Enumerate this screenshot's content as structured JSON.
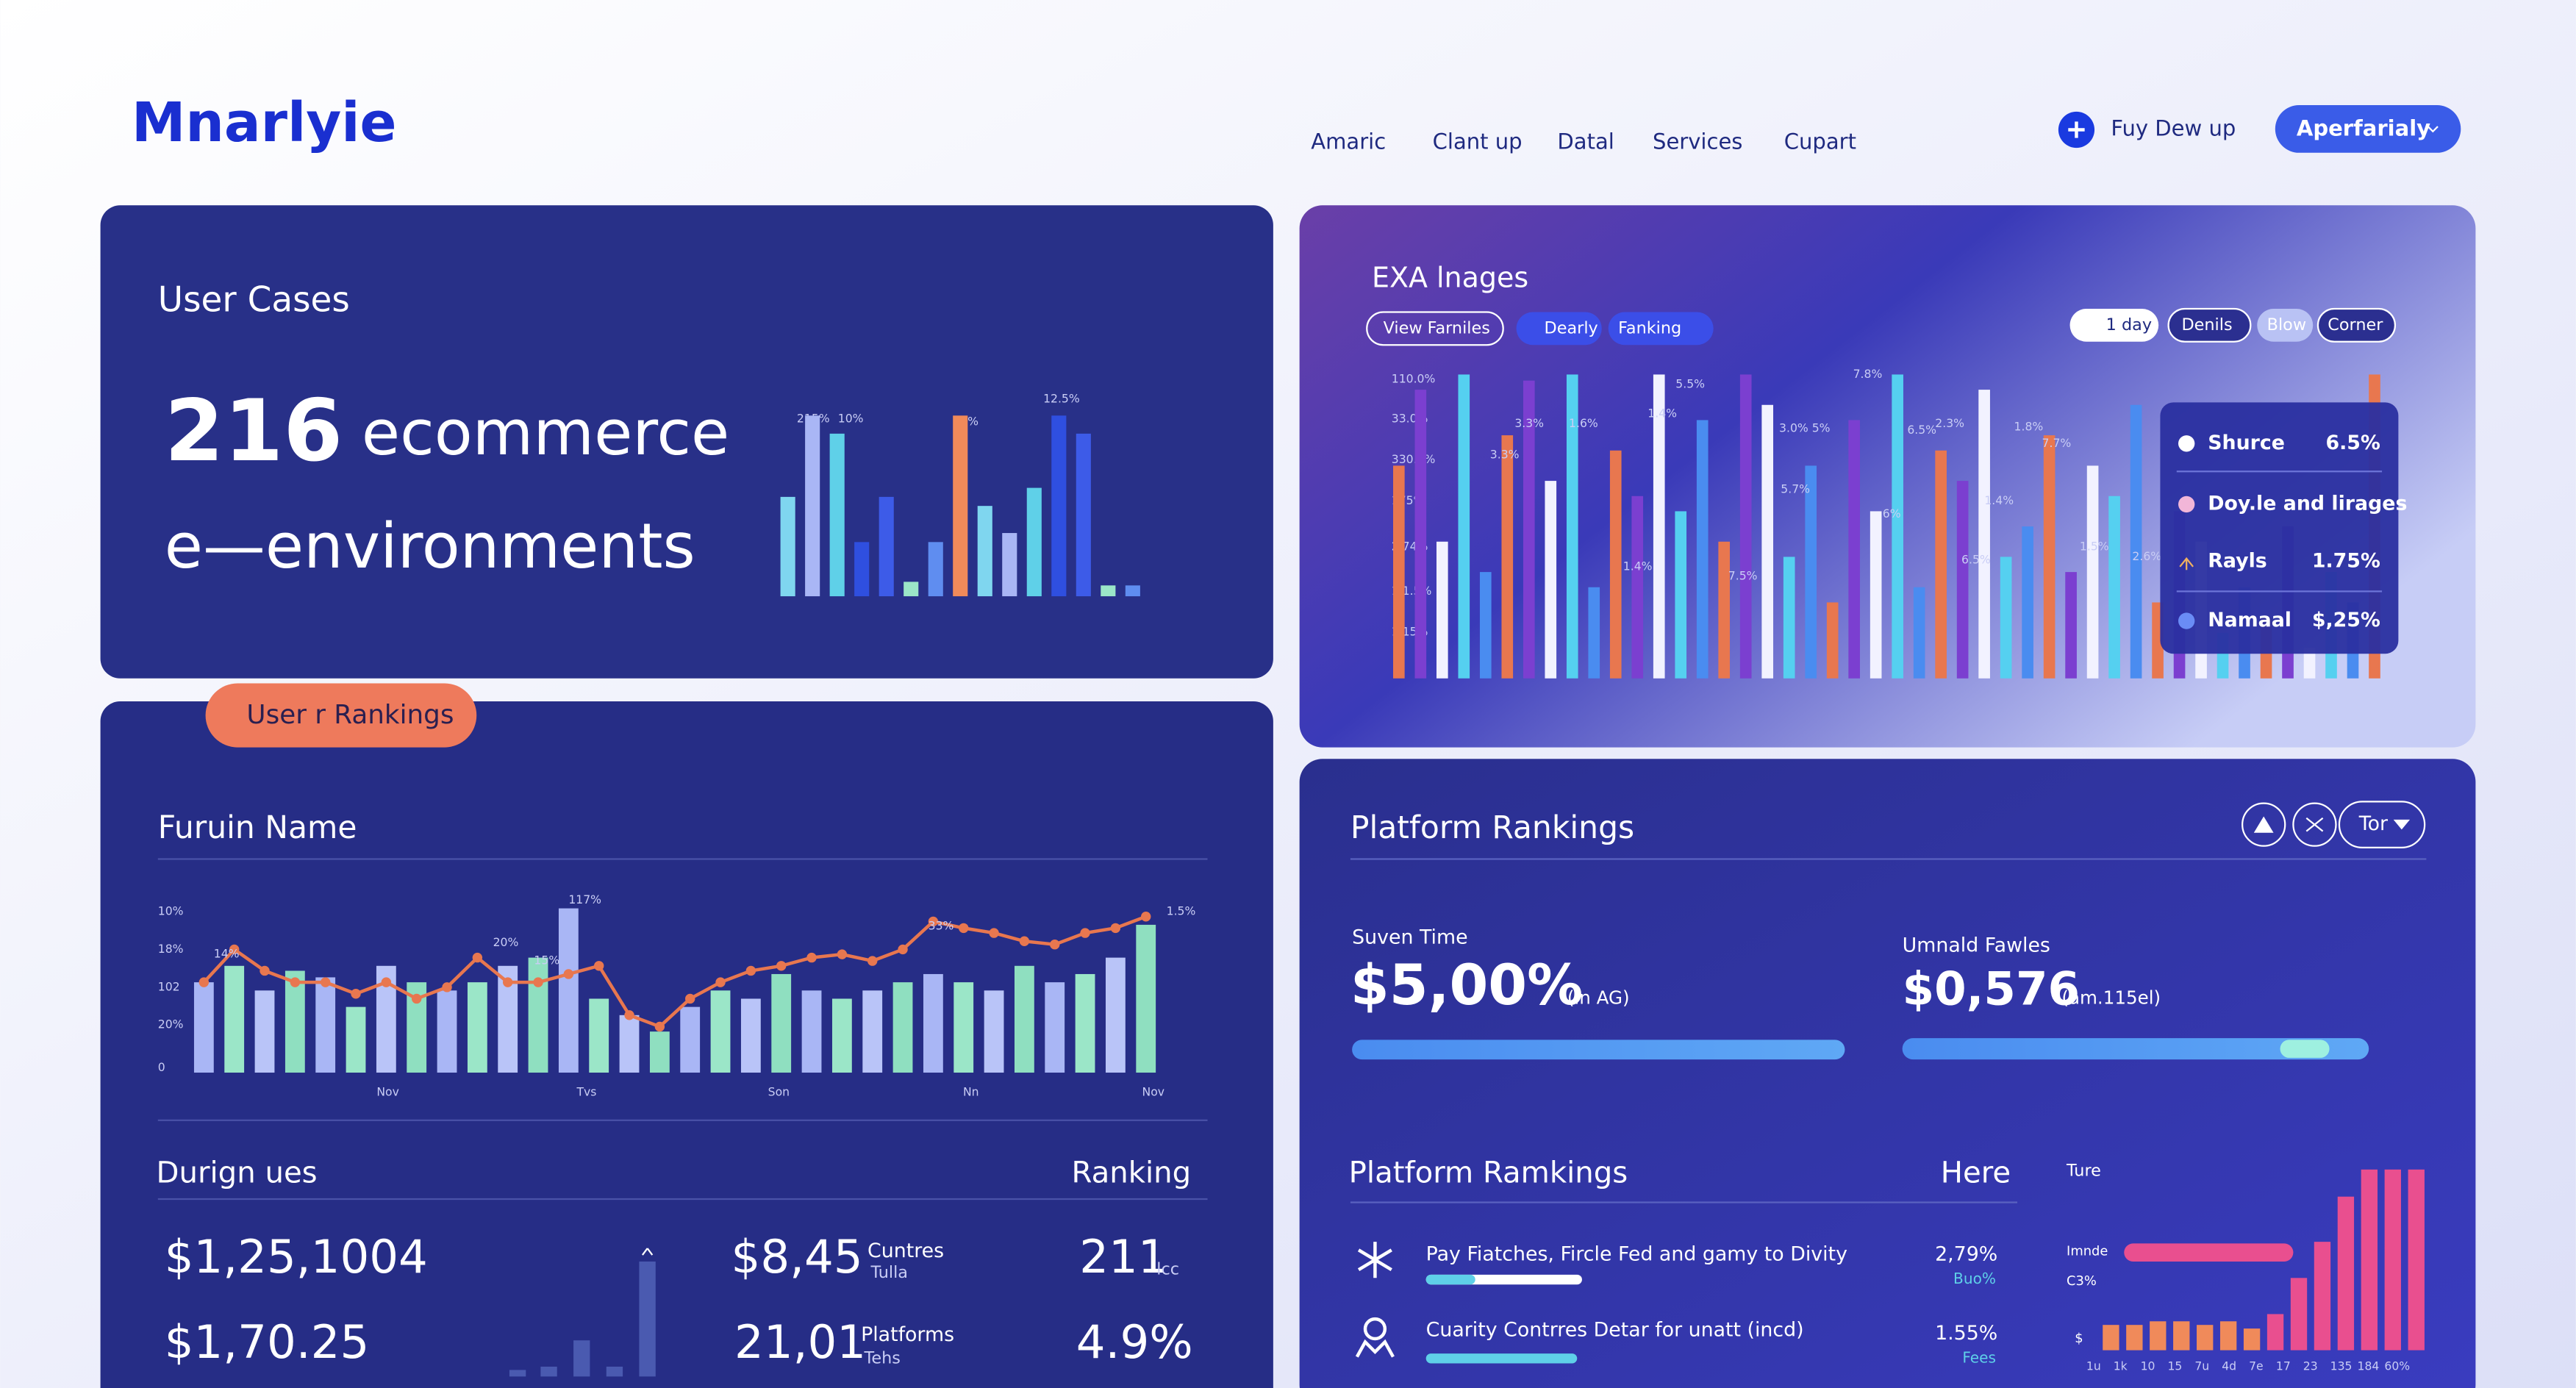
{
  "header": {
    "logo": "Mnarlyie",
    "nav": [
      "Amaric",
      "Clant up",
      "Datal",
      "Services",
      "Cupart"
    ],
    "action": "Fuy Dew up",
    "button": "Aperfarialy"
  },
  "user_cases": {
    "title": "User Cases",
    "count": 216,
    "headline": "ecommerce",
    "subline": "e—environments",
    "chart": {
      "labels": [
        "215%",
        "10%",
        "16%",
        "12.5%"
      ],
      "values": [
        55,
        100,
        90,
        30,
        55,
        8,
        30,
        100,
        50,
        35,
        60,
        100,
        90,
        6,
        6
      ],
      "colors": [
        "#7fd6ef",
        "#a9b6f5",
        "#5fd0e8",
        "#2f4fe0",
        "#3d5be8",
        "#9be6c8",
        "#5f8df0",
        "#f08a5a"
      ]
    }
  },
  "images": {
    "title": "EXA lnages",
    "filters": [
      "View Farniles",
      "Dearly",
      "Fanking"
    ],
    "controls": [
      "1 day",
      "Denils",
      "Blow",
      "Corner"
    ],
    "chart": {
      "yaxis_labels": [
        "110.0%",
        "33.0%",
        "330.0%",
        "175%",
        "2.74%",
        "1.1.5%",
        "1.15%"
      ],
      "annotations": [
        "5.5%",
        "7.8%",
        "3.3%",
        "1.6%",
        "1.4%",
        "3.0% 5%",
        "6.5%",
        "2.3%",
        "1.8%",
        "7.7%",
        "3.3%",
        "5.7%",
        "6%",
        "1.4%",
        "6.5%",
        "1.4%",
        "7.5%",
        "1.5%",
        "2.6%"
      ],
      "values": [
        70,
        95,
        45,
        100,
        35,
        80,
        98,
        65,
        100,
        30,
        75,
        60,
        100,
        55,
        85,
        45,
        100,
        90,
        40,
        70,
        25,
        85,
        55,
        100,
        30,
        75,
        65,
        95,
        40,
        50,
        80,
        35,
        70,
        60,
        90,
        25,
        55,
        45,
        15,
        30,
        20,
        50,
        10,
        35,
        25,
        100
      ],
      "colors": [
        "#e8774f",
        "#7b3fd0",
        "#f2f2ff",
        "#55d0f0",
        "#4a8cf0"
      ]
    },
    "legend": [
      {
        "name": "Shurce",
        "value": "6.5%"
      },
      {
        "name": "Doy.le and lirages"
      },
      {
        "name": "Rayls",
        "value": "1.75%"
      },
      {
        "name": "Namaal",
        "value": "$,25%"
      }
    ]
  },
  "rankings": {
    "badge": "User r Rankings",
    "title": "Furuin Name",
    "chart": {
      "yaxis_labels": [
        "10%",
        "18%",
        "102",
        "20%",
        "0"
      ],
      "xaxis_labels": [
        "Nov",
        "Tvs",
        "Son",
        "Nn",
        "Nov"
      ],
      "annotations": [
        "14%",
        "20%",
        "15%",
        "117%",
        "33%",
        "1.5%"
      ],
      "bar_values": [
        55,
        65,
        50,
        62,
        58,
        40,
        65,
        55,
        50,
        55,
        65,
        70,
        100,
        45,
        35,
        25,
        40,
        50,
        45,
        60,
        50,
        45,
        50,
        55,
        60,
        55,
        50,
        65,
        55,
        60,
        70,
        90
      ],
      "bar_colors": [
        "#a9b6f5",
        "#9be6c8",
        "#b9c4f8",
        "#8fdfc0"
      ],
      "line_values": [
        55,
        75,
        62,
        55,
        55,
        48,
        55,
        45,
        52,
        70,
        55,
        55,
        60,
        65,
        35,
        28,
        45,
        55,
        62,
        65,
        70,
        72,
        68,
        75,
        92,
        88,
        85,
        80,
        78,
        85,
        88,
        95
      ],
      "line_color": "#e8774f"
    },
    "table_title": "Durign ues",
    "table_header": "Ranking",
    "rows": [
      {
        "amount": "$1,25,1004",
        "value": "$8,45",
        "label": "Cuntres",
        "sub": "Tulla",
        "rank": "211",
        "rank_unit": "lcc"
      },
      {
        "amount": "$1,70.25",
        "value": "21,01",
        "label": "Platforms",
        "sub": "Tehs",
        "rank": "4.9%"
      }
    ],
    "mini_chart": {
      "values": [
        4,
        6,
        22,
        6,
        70
      ],
      "color": "#4a5ab0"
    }
  },
  "platform": {
    "title": "Platform Rankings",
    "control": "Tor",
    "stats": [
      {
        "label": "Suven Time",
        "value": "$5,00%",
        "note": "(in AG)"
      },
      {
        "label": "Umnald Fawles",
        "value": "$0,576",
        "note": "(am.115el)"
      }
    ],
    "list_title": "Platform Ramkings",
    "list_header": "Here",
    "items": [
      {
        "text": "Pay Fiatches, Fircle Fed and gamy to Divity",
        "value": "2,79%",
        "sub": "Buo%"
      },
      {
        "text": "Cuarity Contrres Detar for unatt (incd)",
        "value": "1.55%",
        "sub": "Fees"
      }
    ],
    "chart": {
      "labels": [
        "Ture",
        "Imnde",
        "C3%",
        "$"
      ],
      "xaxis_labels": [
        "1u",
        "1k",
        "10",
        "15",
        "7u",
        "4d",
        "7e",
        "17",
        "23",
        "135",
        "184",
        "60%"
      ],
      "values": [
        14,
        14,
        16,
        16,
        14,
        16,
        12,
        20,
        40,
        60,
        85,
        100,
        100,
        100
      ],
      "colors": [
        "#f08a5a",
        "#f08a5a",
        "#f08a5a",
        "#f08a5a",
        "#f08a5a",
        "#f08a5a",
        "#f08a5a",
        "#e94f8f",
        "#e94f8f",
        "#e94f8f",
        "#e94f8f",
        "#e94f8f",
        "#e94f8f",
        "#e94f8f"
      ]
    }
  }
}
